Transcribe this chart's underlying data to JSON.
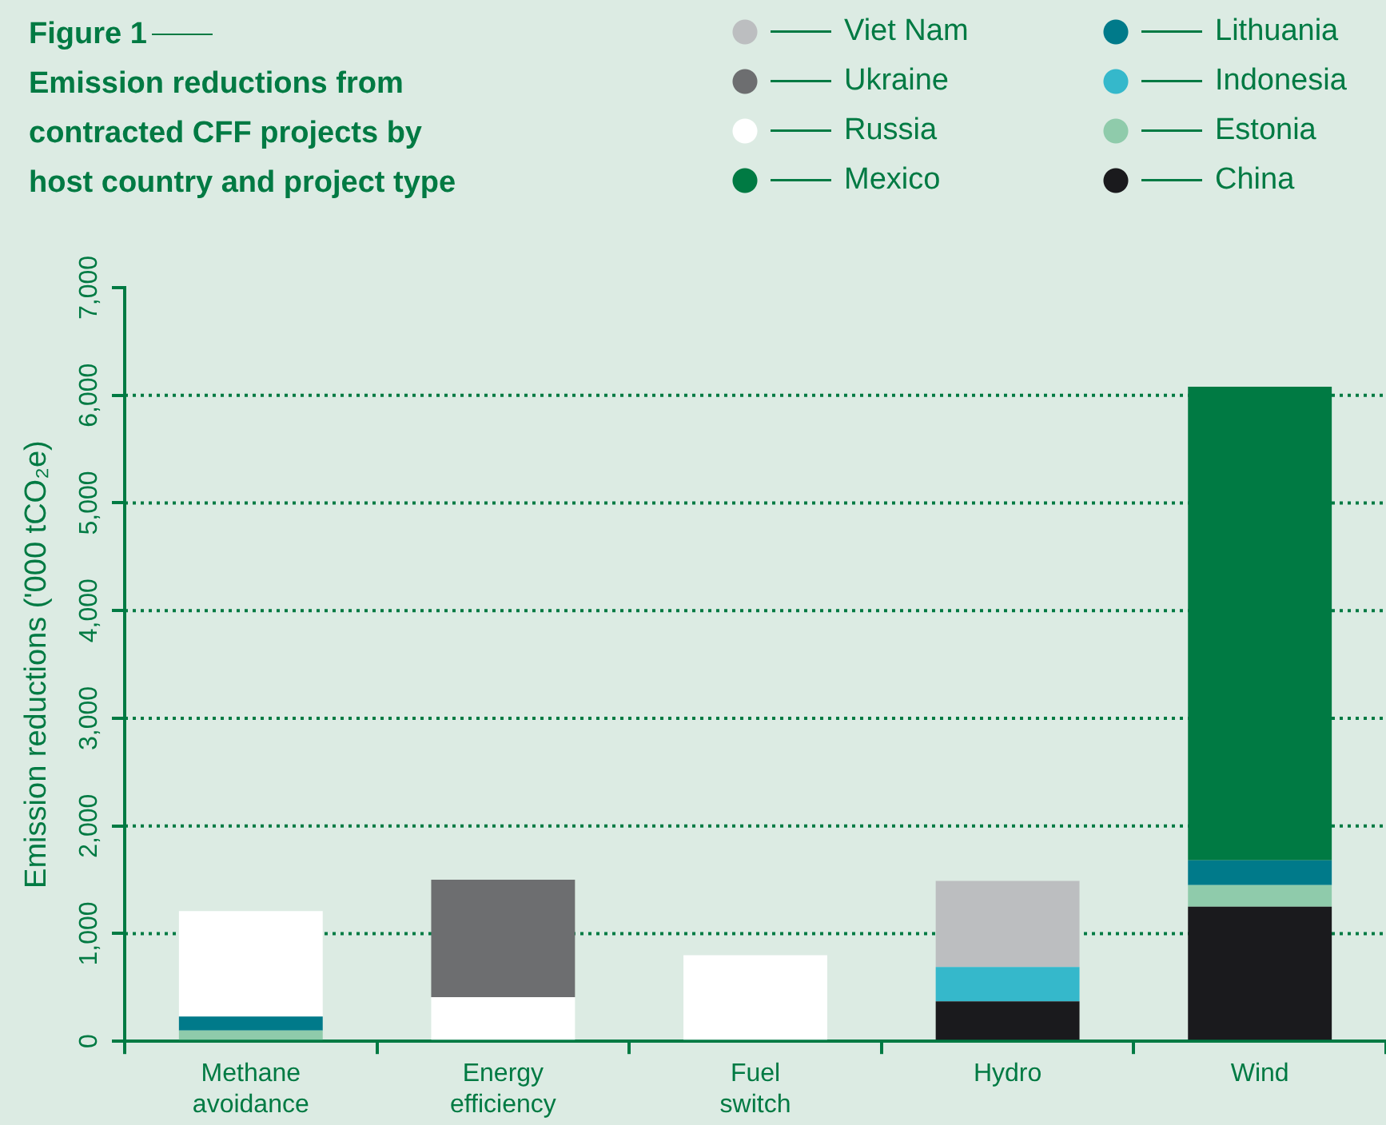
{
  "chart_data": {
    "type": "bar",
    "title": "Figure 1",
    "subtitle": "Emission reductions from contracted CFF projects by host country and project type",
    "ylabel": "Emission reductions ('000 tCO₂e)",
    "categories": [
      "Methane avoidance",
      "Energy efficiency",
      "Fuel switch",
      "Hydro",
      "Wind"
    ],
    "stacked": true,
    "grid": "y",
    "legend": "top right",
    "ylim": [
      0,
      7000
    ],
    "yticks": [
      {
        "value": 0,
        "label": "0"
      },
      {
        "value": 1000,
        "label": "1,000"
      },
      {
        "value": 2000,
        "label": "2,000"
      },
      {
        "value": 3000,
        "label": "3,000"
      },
      {
        "value": 4000,
        "label": "4,000"
      },
      {
        "value": 5000,
        "label": "5,000"
      },
      {
        "value": 6000,
        "label": "6,000"
      },
      {
        "value": 7000,
        "label": "7,000"
      }
    ],
    "series": [
      {
        "name": "China",
        "color": "#1a1a1d",
        "values": [
          null,
          null,
          null,
          370,
          1250
        ]
      },
      {
        "name": "Estonia",
        "color": "#8fcbab",
        "values": [
          100,
          null,
          null,
          null,
          200
        ]
      },
      {
        "name": "Indonesia",
        "color": "#35b8cb",
        "values": [
          null,
          null,
          null,
          320,
          null
        ]
      },
      {
        "name": "Lithuania",
        "color": "#007a8a",
        "values": [
          130,
          null,
          null,
          null,
          230
        ]
      },
      {
        "name": "Mexico",
        "color": "#007a43",
        "values": [
          null,
          null,
          null,
          null,
          4400
        ]
      },
      {
        "name": "Russia",
        "color": "#ffffff",
        "values": [
          980,
          410,
          800,
          null,
          null
        ]
      },
      {
        "name": "Ukraine",
        "color": "#6d6e70",
        "values": [
          null,
          1090,
          null,
          null,
          null
        ]
      },
      {
        "name": "Viet Nam",
        "color": "#bcbec0",
        "values": [
          null,
          null,
          null,
          800,
          null
        ]
      }
    ]
  }
}
